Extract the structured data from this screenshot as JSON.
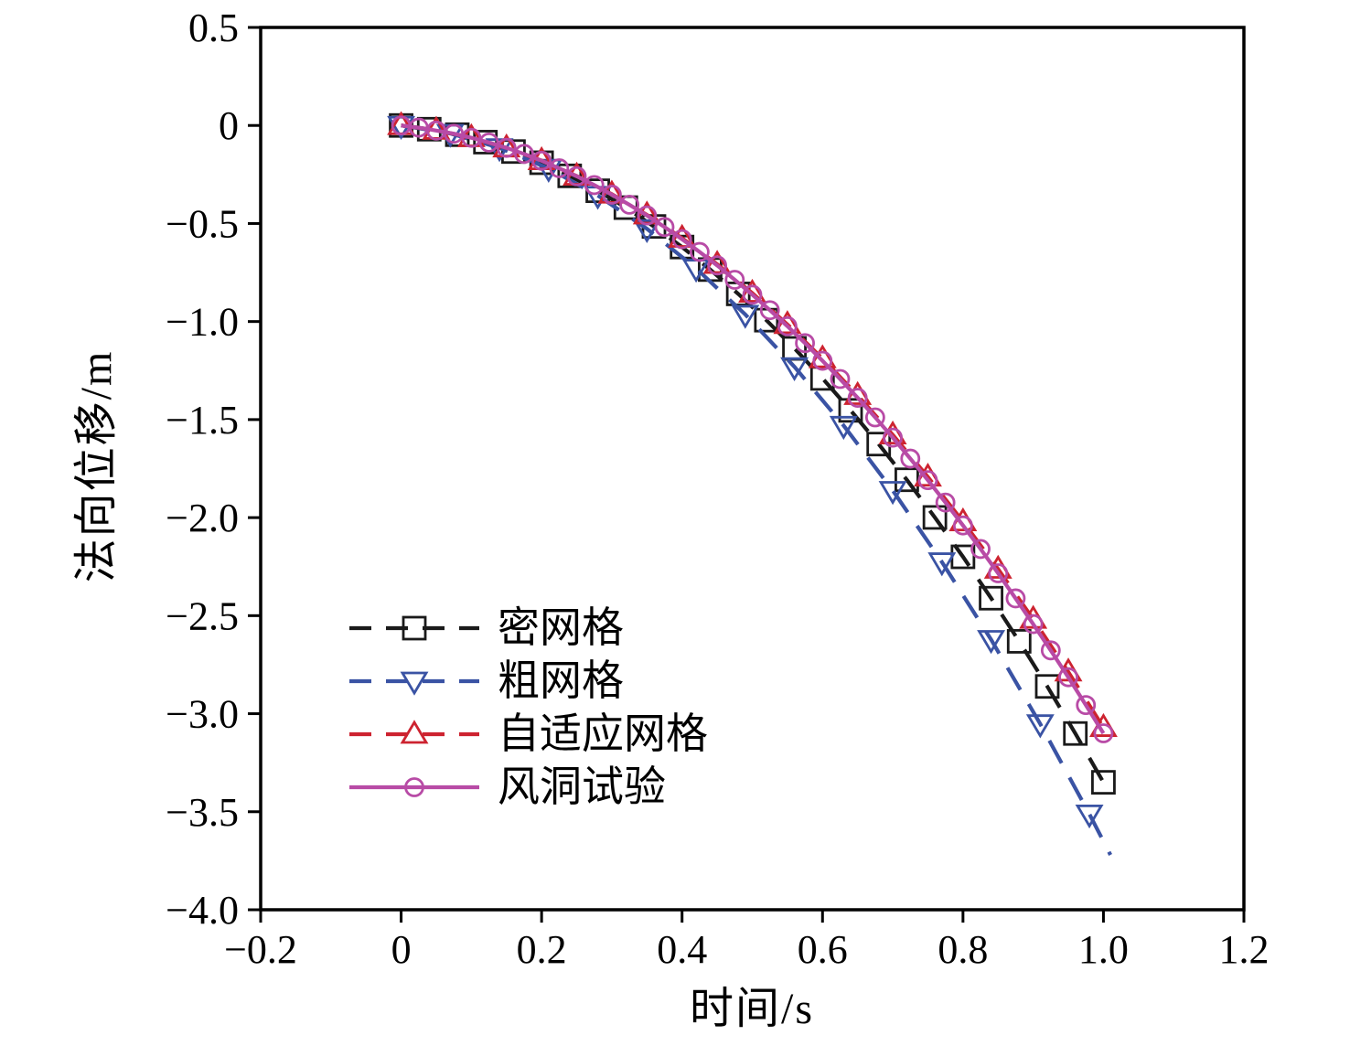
{
  "chart_data": {
    "type": "line",
    "title": "",
    "xlabel": "时间/s",
    "ylabel": "法向位移/m",
    "xlim": [
      -0.2,
      1.2
    ],
    "ylim": [
      -4.0,
      0.5
    ],
    "xticks": [
      -0.2,
      0,
      0.2,
      0.4,
      0.6,
      0.8,
      1.0,
      1.2
    ],
    "xtick_labels": [
      "−0.2",
      "0",
      "0.2",
      "0.4",
      "0.6",
      "0.8",
      "1.0",
      "1.2"
    ],
    "yticks": [
      0.5,
      0,
      -0.5,
      -1.0,
      -1.5,
      -2.0,
      -2.5,
      -3.0,
      -3.5,
      -4.0
    ],
    "ytick_labels": [
      "0.5",
      "0",
      "−0.5",
      "−1.0",
      "−1.5",
      "−2.0",
      "−2.5",
      "−3.0",
      "−3.5",
      "−4.0"
    ],
    "grid": false,
    "legend_position": "inside-lower-left",
    "series": [
      {
        "name": "密网格",
        "color": "#1a1a1a",
        "line": "dashed",
        "marker": "square",
        "x": [
          0,
          0.04,
          0.08,
          0.12,
          0.16,
          0.2,
          0.24,
          0.28,
          0.32,
          0.36,
          0.4,
          0.44,
          0.48,
          0.52,
          0.56,
          0.6,
          0.64,
          0.68,
          0.72,
          0.76,
          0.8,
          0.84,
          0.88,
          0.92,
          0.96,
          1.0
        ],
        "y": [
          0,
          -0.019,
          -0.047,
          -0.085,
          -0.133,
          -0.19,
          -0.257,
          -0.333,
          -0.419,
          -0.515,
          -0.62,
          -0.735,
          -0.859,
          -0.993,
          -1.137,
          -1.29,
          -1.453,
          -1.625,
          -1.807,
          -1.999,
          -2.2,
          -2.411,
          -2.631,
          -2.861,
          -3.101,
          -3.35
        ]
      },
      {
        "name": "粗网格",
        "color": "#3a53a4",
        "line": "dashed",
        "marker": "triangle-down",
        "x": [
          0,
          0.07,
          0.14,
          0.21,
          0.28,
          0.35,
          0.42,
          0.49,
          0.56,
          0.63,
          0.7,
          0.77,
          0.84,
          0.91,
          0.98
        ],
        "y": [
          0,
          -0.041,
          -0.114,
          -0.219,
          -0.357,
          -0.527,
          -0.729,
          -0.964,
          -1.231,
          -1.53,
          -1.862,
          -2.226,
          -2.622,
          -3.052,
          -3.512
        ],
        "line_extend": {
          "x": 1.01,
          "y": -3.72
        }
      },
      {
        "name": "自适应网格",
        "color": "#cd2330",
        "line": "dashed",
        "marker": "triangle-up",
        "x": [
          0,
          0.05,
          0.1,
          0.15,
          0.2,
          0.25,
          0.3,
          0.35,
          0.4,
          0.45,
          0.5,
          0.55,
          0.6,
          0.65,
          0.7,
          0.75,
          0.8,
          0.85,
          0.9,
          0.95,
          1.0
        ],
        "y": [
          0,
          -0.024,
          -0.062,
          -0.114,
          -0.179,
          -0.258,
          -0.35,
          -0.456,
          -0.575,
          -0.708,
          -0.855,
          -1.015,
          -1.189,
          -1.377,
          -1.578,
          -1.793,
          -2.021,
          -2.263,
          -2.518,
          -2.787,
          -3.07
        ]
      },
      {
        "name": "风洞试验",
        "color": "#b84ba6",
        "line": "solid",
        "marker": "circle",
        "x": [
          0,
          0.025,
          0.05,
          0.075,
          0.1,
          0.125,
          0.15,
          0.175,
          0.2,
          0.225,
          0.25,
          0.275,
          0.3,
          0.325,
          0.35,
          0.375,
          0.4,
          0.425,
          0.45,
          0.475,
          0.5,
          0.525,
          0.55,
          0.575,
          0.6,
          0.625,
          0.65,
          0.675,
          0.7,
          0.725,
          0.75,
          0.775,
          0.8,
          0.825,
          0.85,
          0.875,
          0.9,
          0.925,
          0.95,
          0.975,
          1.0
        ],
        "y": [
          0,
          -0.011,
          -0.026,
          -0.042,
          -0.063,
          -0.087,
          -0.114,
          -0.145,
          -0.18,
          -0.218,
          -0.259,
          -0.304,
          -0.353,
          -0.404,
          -0.459,
          -0.518,
          -0.58,
          -0.645,
          -0.714,
          -0.787,
          -0.863,
          -0.942,
          -1.024,
          -1.11,
          -1.2,
          -1.293,
          -1.389,
          -1.489,
          -1.592,
          -1.699,
          -1.809,
          -1.923,
          -2.04,
          -2.16,
          -2.284,
          -2.412,
          -2.543,
          -2.677,
          -2.814,
          -2.956,
          -3.1
        ]
      }
    ]
  }
}
